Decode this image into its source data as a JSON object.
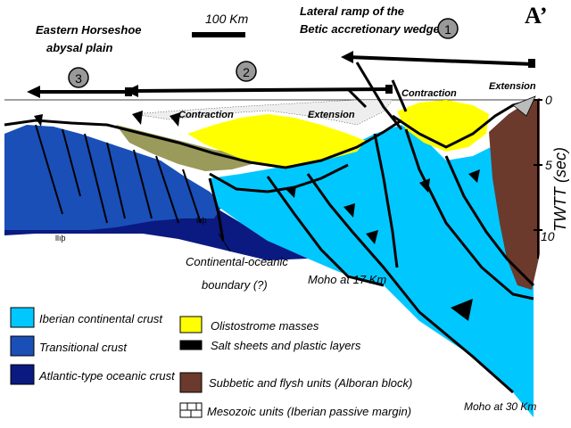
{
  "header": {
    "corner_label": "A’",
    "scale_label": "100 Km",
    "left_title_line1": "Eastern Horseshoe",
    "left_title_line2": "abysal plain",
    "ramp_title_line1": "Lateral ramp of the",
    "ramp_title_line2": "Betic accretionary wedge"
  },
  "segments": [
    {
      "number": "1"
    },
    {
      "number": "2"
    },
    {
      "number": "3"
    }
  ],
  "section_labels": {
    "contraction_left": "Contraction",
    "extension_left": "Extension",
    "contraction_right": "Contraction",
    "extension_right": "Extension"
  },
  "axis": {
    "title": "TWTT  (sec)",
    "ticks": [
      "0",
      "5",
      "10"
    ]
  },
  "annotations": {
    "boundary_line1": "Continental-oceanic",
    "boundary_line2": "boundary (?)",
    "moho_17": "Moho at 17 Km",
    "moho_30": "Moho at 30 Km"
  },
  "legend": [
    {
      "label": "Iberian continental crust",
      "color": "#00c8ff"
    },
    {
      "label": "Transitional crust",
      "color": "#1a4fb8"
    },
    {
      "label": "Atlantic-type oceanic crust",
      "color": "#0a1a80"
    },
    {
      "label": "Olistostrome masses",
      "color": "#ffff00"
    },
    {
      "label": "Salt sheets and plastic layers",
      "color": "#000000"
    },
    {
      "label": "Subbetic and flysh units (Alboran block)",
      "color": "#6b3a2c"
    },
    {
      "label": "Mesozoic units (Iberian passive margin)",
      "color": "#ffffff"
    }
  ],
  "colors": {
    "continental": "#00c8ff",
    "transitional": "#1a4fb8",
    "oceanic": "#0a1a80",
    "olistostrome": "#ffff00",
    "olive_sediment": "#9a9a5a",
    "subbetic": "#6b3a2c"
  }
}
